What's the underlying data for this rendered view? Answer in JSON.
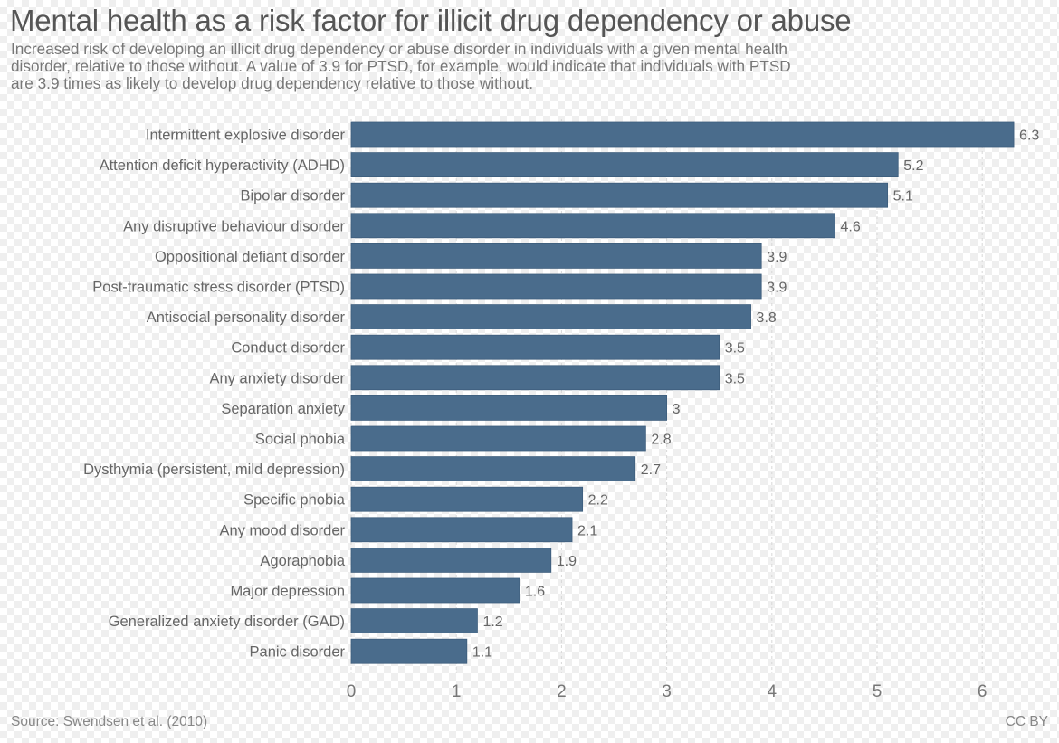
{
  "chart_data": {
    "type": "bar",
    "orientation": "horizontal",
    "title": "Mental health as a risk factor for illicit drug dependency or abuse",
    "subtitle_lines": [
      "Increased risk of developing an illicit drug dependency or abuse disorder in individuals with a given mental health",
      "disorder, relative to those without. A value of 3.9 for PTSD, for example, would indicate that individuals with PTSD",
      "are 3.9 times as likely to develop drug dependency relative to those without."
    ],
    "categories": [
      "Intermittent explosive disorder",
      "Attention deficit hyperactivity (ADHD)",
      "Bipolar disorder",
      "Any disruptive behaviour disorder",
      "Oppositional defiant disorder",
      "Post-traumatic stress disorder (PTSD)",
      "Antisocial personality disorder",
      "Conduct disorder",
      "Any anxiety disorder",
      "Separation anxiety",
      "Social phobia",
      "Dysthymia (persistent, mild depression)",
      "Specific phobia",
      "Any mood disorder",
      "Agoraphobia",
      "Major depression",
      "Generalized anxiety disorder (GAD)",
      "Panic disorder"
    ],
    "values": [
      6.3,
      5.2,
      5.1,
      4.6,
      3.9,
      3.9,
      3.8,
      3.5,
      3.5,
      3,
      2.8,
      2.7,
      2.2,
      2.1,
      1.9,
      1.6,
      1.2,
      1.1
    ],
    "value_labels": [
      "6.3",
      "5.2",
      "5.1",
      "4.6",
      "3.9",
      "3.9",
      "3.8",
      "3.5",
      "3.5",
      "3",
      "2.8",
      "2.7",
      "2.2",
      "2.1",
      "1.9",
      "1.6",
      "1.2",
      "1.1"
    ],
    "xlabel": "",
    "ylabel": "",
    "xlim": [
      0,
      6.3
    ],
    "x_ticks": [
      0,
      1,
      2,
      3,
      4,
      5,
      6
    ],
    "x_tick_labels": [
      "0",
      "1",
      "2",
      "3",
      "4",
      "5",
      "6"
    ],
    "grid": "vertical dashed",
    "legend": "none",
    "bar_color": "#4a6c8c"
  },
  "footer": {
    "source": "Source: Swendsen et al. (2010)",
    "license": "CC BY"
  }
}
